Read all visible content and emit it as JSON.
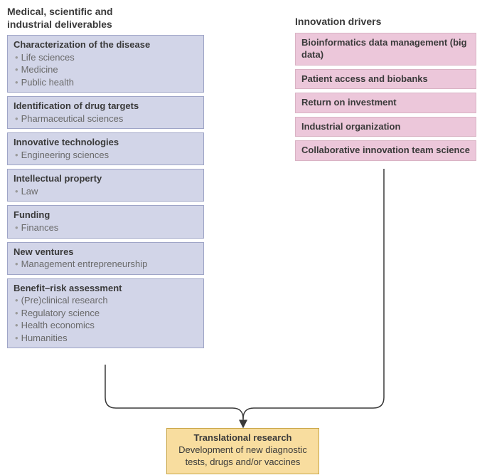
{
  "left": {
    "header": "Medical, scientific and\nindustrial deliverables",
    "box_bg": "#d2d5e8",
    "box_border": "#9fa5c7",
    "items": [
      {
        "title": "Characterization of the disease",
        "subs": [
          "Life sciences",
          "Medicine",
          "Public health"
        ]
      },
      {
        "title": "Identification of drug targets",
        "subs": [
          "Pharmaceutical sciences"
        ]
      },
      {
        "title": "Innovative technologies",
        "subs": [
          "Engineering sciences"
        ]
      },
      {
        "title": "Intellectual property",
        "subs": [
          "Law"
        ]
      },
      {
        "title": "Funding",
        "subs": [
          "Finances"
        ]
      },
      {
        "title": "New ventures",
        "subs": [
          "Management entrepreneurship"
        ]
      },
      {
        "title": "Benefit–risk assessment",
        "subs": [
          "(Pre)clinical research",
          "Regulatory science",
          "Health economics",
          "Humanities"
        ]
      }
    ]
  },
  "right": {
    "header": "Innovation drivers",
    "box_bg": "#ecc7da",
    "box_border": "#d9b3c4",
    "items": [
      {
        "title": "Bioinformatics data management (big data)"
      },
      {
        "title": "Patient access and biobanks"
      },
      {
        "title": "Return on investment"
      },
      {
        "title": "Industrial organization"
      },
      {
        "title": "Collaborative innovation team science"
      }
    ]
  },
  "result": {
    "title": "Translational research",
    "subtitle": "Development of new diagnostic tests, drugs and/or vaccines",
    "bg": "#f8dd9f",
    "border": "#c9a648"
  },
  "connector_color": "#3a3a3a"
}
